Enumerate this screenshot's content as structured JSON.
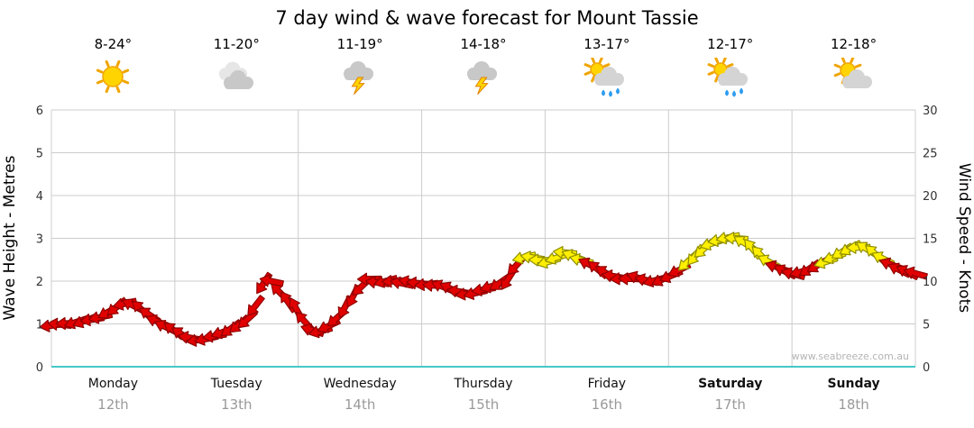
{
  "chart_data": {
    "type": "line",
    "title": "7 day wind & wave forecast for Mount Tassie",
    "watermark": "www.seabreeze.com.au",
    "left_axis": {
      "label": "Wave Height - Metres",
      "min": 0,
      "max": 6,
      "ticks": [
        0,
        1,
        2,
        3,
        4,
        5,
        6
      ]
    },
    "right_axis": {
      "label": "Wind Speed - Knots",
      "min": 0,
      "max": 30,
      "ticks": [
        0,
        5,
        10,
        15,
        20,
        25,
        30
      ]
    },
    "grid_color": "#cccccc",
    "axis_line_color": "#45c8c8",
    "days": [
      {
        "label": "Monday",
        "date": "12th",
        "temp": "8-24°",
        "icon": "sunny",
        "bold": false
      },
      {
        "label": "Tuesday",
        "date": "13th",
        "temp": "11-20°",
        "icon": "cloudy",
        "bold": false
      },
      {
        "label": "Wednesday",
        "date": "14th",
        "temp": "11-19°",
        "icon": "storm",
        "bold": false
      },
      {
        "label": "Thursday",
        "date": "15th",
        "temp": "14-18°",
        "icon": "storm",
        "bold": false
      },
      {
        "label": "Friday",
        "date": "16th",
        "temp": "13-17°",
        "icon": "sun-showers",
        "bold": false
      },
      {
        "label": "Saturday",
        "date": "17th",
        "temp": "12-17°",
        "icon": "sun-showers",
        "bold": true
      },
      {
        "label": "Sunday",
        "date": "18th",
        "temp": "12-18°",
        "icon": "sun-cloud",
        "bold": true
      }
    ],
    "wind_series": {
      "unit": "knots",
      "color_rule": {
        "yellow_at_or_above": 12
      },
      "colors": {
        "red": "#e10000",
        "red_outline": "#8f0000",
        "yellow": "#ffef00",
        "yellow_outline": "#8f8f00"
      },
      "points": [
        [
          0.0,
          4.8
        ],
        [
          0.1,
          5.0
        ],
        [
          0.2,
          5.2
        ],
        [
          0.3,
          5.4
        ],
        [
          0.4,
          5.8
        ],
        [
          0.5,
          6.8
        ],
        [
          0.6,
          7.4
        ],
        [
          0.7,
          7.0
        ],
        [
          0.8,
          6.0
        ],
        [
          0.9,
          4.8
        ],
        [
          1.0,
          4.2
        ],
        [
          1.08,
          3.6
        ],
        [
          1.18,
          3.1
        ],
        [
          1.28,
          3.3
        ],
        [
          1.38,
          4.0
        ],
        [
          1.48,
          4.6
        ],
        [
          1.58,
          5.4
        ],
        [
          1.64,
          6.6
        ],
        [
          1.7,
          9.2
        ],
        [
          1.75,
          10.7
        ],
        [
          1.82,
          9.2
        ],
        [
          1.9,
          7.8
        ],
        [
          2.0,
          6.6
        ],
        [
          2.06,
          5.0
        ],
        [
          2.14,
          3.9
        ],
        [
          2.22,
          4.4
        ],
        [
          2.32,
          5.8
        ],
        [
          2.42,
          7.8
        ],
        [
          2.5,
          9.2
        ],
        [
          2.58,
          10.3
        ],
        [
          2.66,
          9.7
        ],
        [
          2.74,
          10.2
        ],
        [
          2.82,
          9.7
        ],
        [
          2.9,
          9.9
        ],
        [
          3.0,
          9.7
        ],
        [
          3.1,
          9.5
        ],
        [
          3.2,
          9.3
        ],
        [
          3.3,
          8.8
        ],
        [
          3.4,
          8.4
        ],
        [
          3.5,
          9.0
        ],
        [
          3.6,
          9.6
        ],
        [
          3.7,
          10.2
        ],
        [
          3.78,
          12.2
        ],
        [
          3.85,
          13.0
        ],
        [
          3.95,
          12.5
        ],
        [
          4.05,
          12.2
        ],
        [
          4.15,
          13.4
        ],
        [
          4.25,
          12.8
        ],
        [
          4.35,
          12.0
        ],
        [
          4.45,
          11.2
        ],
        [
          4.55,
          10.6
        ],
        [
          4.65,
          10.2
        ],
        [
          4.75,
          10.4
        ],
        [
          4.85,
          10.0
        ],
        [
          4.95,
          10.2
        ],
        [
          5.05,
          10.8
        ],
        [
          5.15,
          12.2
        ],
        [
          5.25,
          13.4
        ],
        [
          5.35,
          14.4
        ],
        [
          5.45,
          15.0
        ],
        [
          5.52,
          15.2
        ],
        [
          5.6,
          14.6
        ],
        [
          5.7,
          13.6
        ],
        [
          5.8,
          12.4
        ],
        [
          5.9,
          11.4
        ],
        [
          6.0,
          10.8
        ],
        [
          6.1,
          11.2
        ],
        [
          6.2,
          11.8
        ],
        [
          6.3,
          12.4
        ],
        [
          6.4,
          13.4
        ],
        [
          6.5,
          14.0
        ],
        [
          6.6,
          13.8
        ],
        [
          6.7,
          13.0
        ],
        [
          6.78,
          12.2
        ],
        [
          6.85,
          11.4
        ],
        [
          6.95,
          11.0
        ],
        [
          7.0,
          10.9
        ]
      ]
    }
  }
}
